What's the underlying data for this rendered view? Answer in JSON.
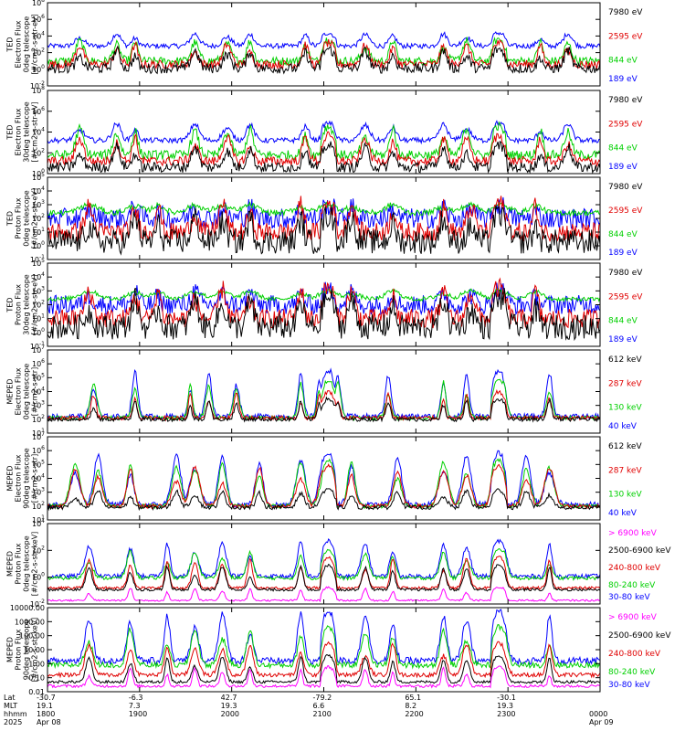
{
  "chart_data": [
    {
      "type": "line",
      "ylabel": [
        "TED",
        "Electron Flux",
        "0deg telescope",
        "[#/cm2-s-str-eV]"
      ],
      "y_log": true,
      "ylim": [
        -2,
        8
      ],
      "ytick_labels": [
        "10^-2",
        "10^0",
        "10^2",
        "10^4",
        "10^6",
        "10^8"
      ],
      "legend": [
        "7980 eV",
        "2595 eV",
        "844 eV",
        "189 eV"
      ],
      "colors": [
        "#000000",
        "#e00000",
        "#00d000",
        "#0000ff"
      ]
    },
    {
      "type": "line",
      "ylabel": [
        "TED",
        "Electron Flux",
        "30deg telescope",
        "[#/cm2-s-str-eV]"
      ],
      "y_log": true,
      "ylim": [
        0,
        8
      ],
      "ytick_labels": [
        "10^0",
        "10^2",
        "10^4",
        "10^6",
        "10^8"
      ],
      "legend": [
        "7980 eV",
        "2595 eV",
        "844 eV",
        "189 eV"
      ],
      "colors": [
        "#000000",
        "#e00000",
        "#00d000",
        "#0000ff"
      ]
    },
    {
      "type": "line",
      "ylabel": [
        "TED",
        "Proton Flux",
        "0deg telescope",
        "[#/cm2-s-str-eV]"
      ],
      "y_log": true,
      "ylim": [
        -1,
        5
      ],
      "ytick_labels": [
        "10^-1",
        "10^0",
        "10^1",
        "10^2",
        "10^3",
        "10^4",
        "10^5"
      ],
      "legend": [
        "7980 eV",
        "2595 eV",
        "844 eV",
        "189 eV"
      ],
      "colors": [
        "#000000",
        "#e00000",
        "#00d000",
        "#0000ff"
      ]
    },
    {
      "type": "line",
      "ylabel": [
        "TED",
        "Proton Flux",
        "30deg telescope",
        "[#/cm2-s-str-eV]"
      ],
      "y_log": true,
      "ylim": [
        -1,
        5
      ],
      "ytick_labels": [
        "10^-1",
        "10^0",
        "10^1",
        "10^2",
        "10^3",
        "10^4",
        "10^5"
      ],
      "legend": [
        "7980 eV",
        "2595 eV",
        "844 eV",
        "189 eV"
      ],
      "colors": [
        "#000000",
        "#e00000",
        "#00d000",
        "#0000ff"
      ]
    },
    {
      "type": "line",
      "ylabel": [
        "MEPED",
        "Electron Flux",
        "0deg telescope",
        "[#/cm2-s-str]"
      ],
      "y_log": true,
      "ylim": [
        1,
        7
      ],
      "ytick_labels": [
        "10^1",
        "10^2",
        "10^3",
        "10^4",
        "10^5",
        "10^6",
        "10^7"
      ],
      "legend": [
        "612 keV",
        "287 keV",
        "130 keV",
        "40 keV"
      ],
      "colors": [
        "#000000",
        "#e00000",
        "#00d000",
        "#0000ff"
      ]
    },
    {
      "type": "line",
      "ylabel": [
        "MEPED",
        "Electron Flux",
        "90deg telescope",
        "[#/cm2-s-str]"
      ],
      "y_log": true,
      "ylim": [
        1,
        7
      ],
      "ytick_labels": [
        "10^1",
        "10^2",
        "10^3",
        "10^4",
        "10^5",
        "10^6",
        "10^7"
      ],
      "legend": [
        "612 keV",
        "287 keV",
        "130 keV",
        "40 keV"
      ],
      "colors": [
        "#000000",
        "#e00000",
        "#00d000",
        "#0000ff"
      ]
    },
    {
      "type": "line",
      "ylabel": [
        "MEPED",
        "Proton Flux",
        "0deg telescope",
        "[#/cm2-s-str-keV]"
      ],
      "y_log": true,
      "ylim": [
        -3,
        6
      ],
      "ytick_labels": [
        "10^-2",
        "10^0",
        "10^2",
        "10^4"
      ],
      "legend": [
        "> 6900 keV",
        "2500-6900 keV",
        "240-800 keV",
        "80-240 keV",
        "30-80 keV"
      ],
      "colors": [
        "#ff00ff",
        "#000000",
        "#e00000",
        "#00d000",
        "#0000ff"
      ]
    },
    {
      "type": "line",
      "ylabel": [
        "MEPED",
        "Proton Flux",
        "90deg telescope",
        "[#/cm2-s-str-keV]"
      ],
      "y_log": true,
      "ylim": [
        -2,
        4
      ],
      "ytick_labels": [
        "0.01",
        "0.10",
        "1.00",
        "10.00",
        "100.00",
        "1000.00",
        "10000.00"
      ],
      "legend": [
        "> 6900 keV",
        "2500-6900 keV",
        "240-800 keV",
        "80-240 keV",
        "30-80 keV"
      ],
      "colors": [
        "#ff00ff",
        "#000000",
        "#e00000",
        "#00d000",
        "#0000ff"
      ]
    }
  ],
  "xaxis": {
    "row_labels": [
      "Lat",
      "MLT",
      "hhmm",
      "2025"
    ],
    "ticks": [
      {
        "lat": "-30.7",
        "mlt": "19.1",
        "hhmm": "1800",
        "date": "Apr 08"
      },
      {
        "lat": "-6.3",
        "mlt": "7.3",
        "hhmm": "1900",
        "date": ""
      },
      {
        "lat": "42.7",
        "mlt": "19.3",
        "hhmm": "2000",
        "date": ""
      },
      {
        "lat": "-79.2",
        "mlt": "6.6",
        "hhmm": "2100",
        "date": ""
      },
      {
        "lat": "65.1",
        "mlt": "8.2",
        "hhmm": "2200",
        "date": ""
      },
      {
        "lat": "-30.1",
        "mlt": "19.3",
        "hhmm": "2300",
        "date": ""
      },
      {
        "lat": "",
        "mlt": "",
        "hhmm": "0000",
        "date": "Apr 09"
      }
    ]
  }
}
